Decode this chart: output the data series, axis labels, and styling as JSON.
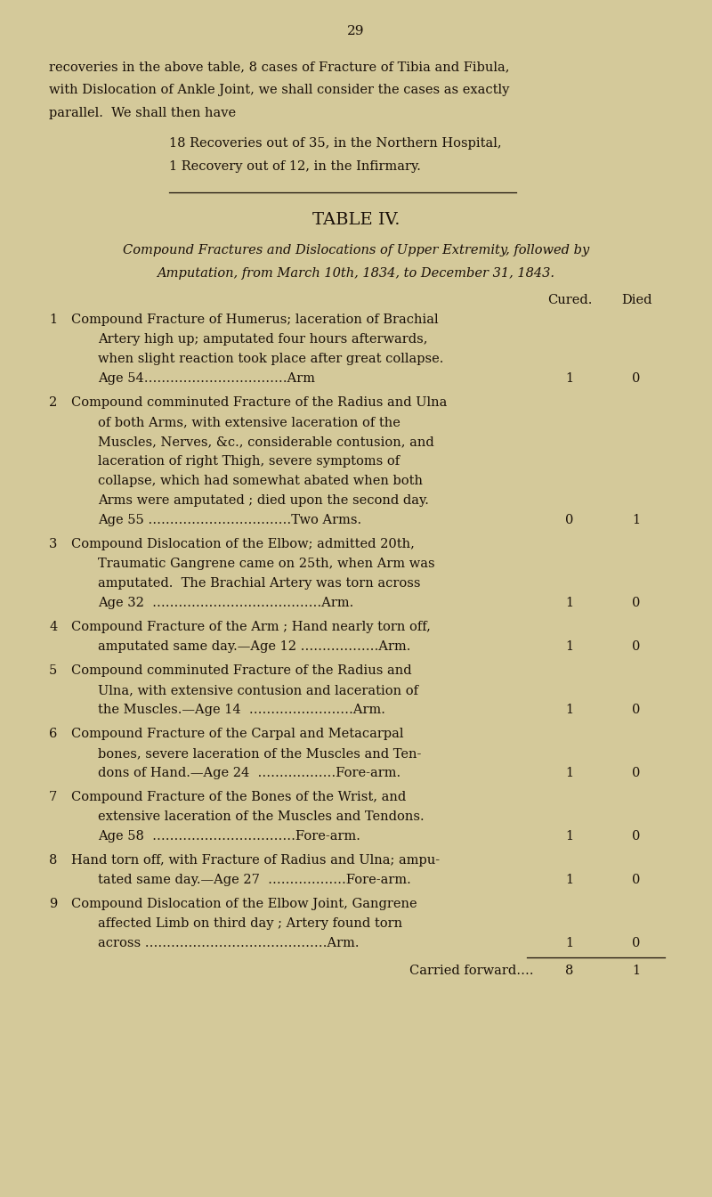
{
  "background_color": "#d4c99a",
  "text_color": "#1a1008",
  "page_number": "29",
  "page_width": 8.0,
  "page_height": 13.44,
  "dpi": 100,
  "intro_lines": [
    "recoveries in the above table, 8 cases of Fracture of Tibia and Fibula,",
    "with Dislocation of Ankle Joint, we shall consider the cases as exactly",
    "parallel.  We shall then have"
  ],
  "indented_lines": [
    "18 Recoveries out of 35, in the Northern Hospital,",
    "1 Recovery out of 12, in the Infirmary."
  ],
  "table_title": "TABLE IV.",
  "table_subtitle_line1": "Compound Fractures and Dislocations of Upper Extremity, followed by",
  "table_subtitle_line2": "Amputation, from March 10th, 1834, to December 31, 1843.",
  "col_headers": [
    "Cured.",
    "Died"
  ],
  "entries": [
    {
      "num": "1",
      "lines": [
        "Compound Fracture of Humerus; laceration of Brachial",
        "Artery high up; amputated four hours afterwards,",
        "when slight reaction took place after great collapse.",
        "Age 54……………………………Arm"
      ],
      "cured": "1",
      "died": "0"
    },
    {
      "num": "2",
      "lines": [
        "Compound comminuted Fracture of the Radius and Ulna",
        "of both Arms, with extensive laceration of the",
        "Muscles, Nerves, &c., considerable contusion, and",
        "laceration of right Thigh, severe symptoms of",
        "collapse, which had somewhat abated when both",
        "Arms were amputated ; died upon the second day.",
        "Age 55 ……………………………Two Arms."
      ],
      "cured": "0",
      "died": "1"
    },
    {
      "num": "3",
      "lines": [
        "Compound Dislocation of the Elbow; admitted 20th,",
        "Traumatic Gangrene came on 25th, when Arm was",
        "amputated.  The Brachial Artery was torn across",
        "Age 32  …………………………………Arm."
      ],
      "cured": "1",
      "died": "0"
    },
    {
      "num": "4",
      "lines": [
        "Compound Fracture of the Arm ; Hand nearly torn off,",
        "amputated same day.—Age 12 ………………Arm."
      ],
      "cured": "1",
      "died": "0"
    },
    {
      "num": "5",
      "lines": [
        "Compound comminuted Fracture of the Radius and",
        "Ulna, with extensive contusion and laceration of",
        "the Muscles.—Age 14  ……………………Arm."
      ],
      "cured": "1",
      "died": "0"
    },
    {
      "num": "6",
      "lines": [
        "Compound Fracture of the Carpal and Metacarpal",
        "bones, severe laceration of the Muscles and Ten-",
        "dons of Hand.—Age 24  ………………Fore-arm."
      ],
      "cured": "1",
      "died": "0"
    },
    {
      "num": "7",
      "lines": [
        "Compound Fracture of the Bones of the Wrist, and",
        "extensive laceration of the Muscles and Tendons.",
        "Age 58  ……………………………Fore-arm."
      ],
      "cured": "1",
      "died": "0"
    },
    {
      "num": "8",
      "lines": [
        "Hand torn off, with Fracture of Radius and Ulna; ampu-",
        "tated same day.—Age 27  ………………Fore-arm."
      ],
      "cured": "1",
      "died": "0"
    },
    {
      "num": "9",
      "lines": [
        "Compound Dislocation of the Elbow Joint, Gangrene",
        "affected Limb on third day ; Artery found torn",
        "across ……………………………………Arm."
      ],
      "cured": "1",
      "died": "0"
    }
  ],
  "carried_forward_label": "Carried forward….",
  "carried_forward_cured": "8",
  "carried_forward_died": "1"
}
